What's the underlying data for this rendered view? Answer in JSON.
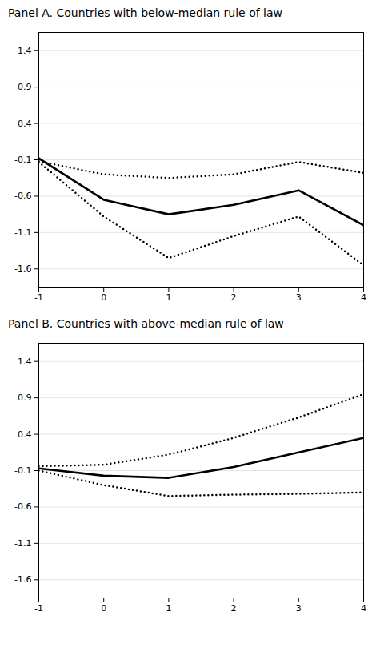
{
  "chart_data": [
    {
      "type": "line",
      "title": "Panel A. Countries with below-median rule of law",
      "x": [
        -1,
        0,
        1,
        2,
        3,
        4
      ],
      "series": [
        {
          "color": "#000000",
          "line_style": "dotted",
          "values": [
            -0.12,
            -0.3,
            -0.35,
            -0.3,
            -0.13,
            -0.28
          ]
        },
        {
          "color": "#000000",
          "line_style": "dotted",
          "values": [
            -0.13,
            -0.88,
            -1.45,
            -1.15,
            -0.88,
            -1.55
          ]
        },
        {
          "color": "#000000",
          "line_style": "solid",
          "values": [
            -0.08,
            -0.65,
            -0.85,
            -0.72,
            -0.52,
            -1.0
          ]
        }
      ],
      "xlim": [
        -1,
        4
      ],
      "xticks": [
        -1,
        0,
        1,
        2,
        3,
        4
      ],
      "ylim": [
        -1.85,
        1.65
      ],
      "yticks": [
        -1.6,
        -1.1,
        -0.6,
        -0.1,
        0.4,
        0.9,
        1.4
      ],
      "grid": true
    },
    {
      "type": "line",
      "title": "Panel B. Countries with above-median rule of law",
      "x": [
        -1,
        0,
        1,
        2,
        3,
        4
      ],
      "series": [
        {
          "color": "#000000",
          "line_style": "dotted",
          "values": [
            -0.04,
            -0.02,
            0.12,
            0.35,
            0.63,
            0.95
          ]
        },
        {
          "color": "#000000",
          "line_style": "dotted",
          "values": [
            -0.1,
            -0.3,
            -0.45,
            -0.43,
            -0.42,
            -0.4
          ]
        },
        {
          "color": "#000000",
          "line_style": "solid",
          "values": [
            -0.07,
            -0.17,
            -0.2,
            -0.05,
            0.15,
            0.35
          ]
        }
      ],
      "xlim": [
        -1,
        4
      ],
      "xticks": [
        -1,
        0,
        1,
        2,
        3,
        4
      ],
      "ylim": [
        -1.85,
        1.65
      ],
      "yticks": [
        -1.6,
        -1.1,
        -0.6,
        -0.1,
        0.4,
        0.9,
        1.4
      ],
      "grid": true
    }
  ]
}
